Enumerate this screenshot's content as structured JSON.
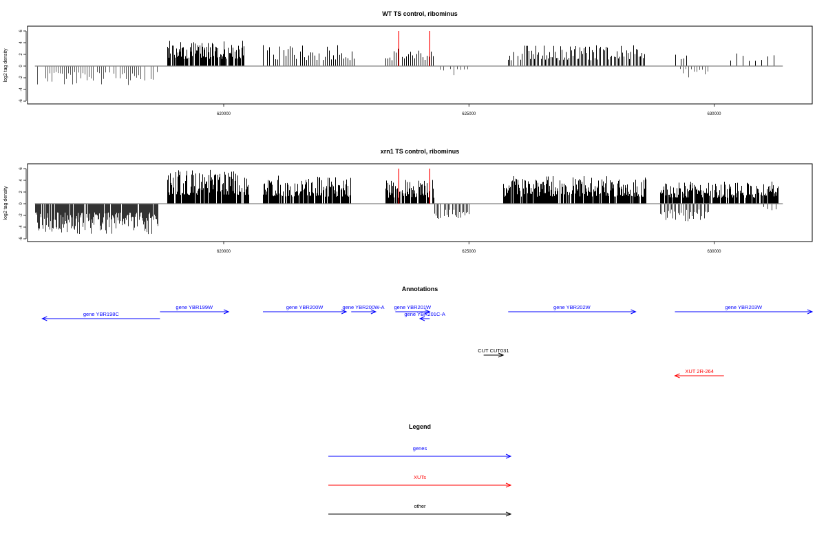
{
  "panels": [
    {
      "title": "WT TS control, ribominus",
      "ylabel": "log2 tag density",
      "ylim": [
        -6,
        6
      ],
      "yticks": [
        -6,
        -4,
        -2,
        0,
        2,
        4,
        6
      ],
      "xlim": [
        616000,
        632000
      ],
      "xticks": [
        620000,
        625000,
        630000
      ],
      "baseline_color": "#808080",
      "red_markers": [
        623570,
        624200
      ],
      "segments": [
        {
          "strand": "-",
          "start": 616150,
          "end": 618650,
          "min": 1.0,
          "max": 3.3,
          "color": "#555555",
          "stride": 3
        },
        {
          "strand": "+",
          "start": 618850,
          "end": 620400,
          "min": 1.2,
          "max": 4.4,
          "color": "#000000",
          "stride": 1
        },
        {
          "strand": "+",
          "start": 620800,
          "end": 622650,
          "min": 1.0,
          "max": 3.6,
          "color": "#000000",
          "stride": 3
        },
        {
          "strand": "+",
          "start": 623300,
          "end": 624300,
          "min": 1.0,
          "max": 3.2,
          "color": "#000000",
          "stride": 3
        },
        {
          "strand": "-",
          "start": 624400,
          "end": 625000,
          "min": 0.5,
          "max": 1.6,
          "color": "#555555",
          "stride": 5
        },
        {
          "strand": "+",
          "start": 625800,
          "end": 628600,
          "min": 1.0,
          "max": 3.6,
          "color": "#000000",
          "stride": 2
        },
        {
          "strand": "+",
          "start": 629200,
          "end": 629500,
          "min": 1.0,
          "max": 3.0,
          "color": "#000000",
          "stride": 4
        },
        {
          "strand": "-",
          "start": 629300,
          "end": 629900,
          "min": 0.5,
          "max": 2.5,
          "color": "#555555",
          "stride": 4
        },
        {
          "strand": "+",
          "start": 630200,
          "end": 631400,
          "min": 0.8,
          "max": 2.2,
          "color": "#000000",
          "stride": 9
        }
      ]
    },
    {
      "title": "xrn1 TS control, ribominus",
      "ylabel": "log2 tag density",
      "ylim": [
        -6,
        6
      ],
      "yticks": [
        -6,
        -4,
        -2,
        0,
        2,
        4,
        6
      ],
      "xlim": [
        616000,
        632000
      ],
      "xticks": [
        620000,
        625000,
        630000
      ],
      "baseline_color": "#808080",
      "red_markers": [
        623570,
        624200
      ],
      "segments": [
        {
          "strand": "-",
          "start": 616150,
          "end": 618650,
          "min": 1.5,
          "max": 5.2,
          "color": "#333333",
          "stride": 1
        },
        {
          "strand": "+",
          "start": 618850,
          "end": 620500,
          "min": 1.5,
          "max": 5.8,
          "color": "#000000",
          "stride": 1
        },
        {
          "strand": "+",
          "start": 620800,
          "end": 622600,
          "min": 1.2,
          "max": 4.8,
          "color": "#000000",
          "stride": 1
        },
        {
          "strand": "+",
          "start": 623300,
          "end": 624300,
          "min": 1.0,
          "max": 4.2,
          "color": "#000000",
          "stride": 1
        },
        {
          "strand": "-",
          "start": 624300,
          "end": 625000,
          "min": 1.0,
          "max": 2.6,
          "color": "#333333",
          "stride": 2
        },
        {
          "strand": "+",
          "start": 625700,
          "end": 628600,
          "min": 1.2,
          "max": 4.8,
          "color": "#000000",
          "stride": 1
        },
        {
          "strand": "+",
          "start": 628900,
          "end": 631300,
          "min": 1.0,
          "max": 3.8,
          "color": "#000000",
          "stride": 1
        },
        {
          "strand": "-",
          "start": 628900,
          "end": 629900,
          "min": 1.0,
          "max": 3.0,
          "color": "#333333",
          "stride": 2
        },
        {
          "strand": "-",
          "start": 631000,
          "end": 631300,
          "min": 0.5,
          "max": 1.5,
          "color": "#333333",
          "stride": 6
        }
      ]
    }
  ],
  "annotations": {
    "title": "Annotations",
    "features": [
      {
        "label": "gene YBR198C",
        "kind": "gene",
        "strand": "-",
        "start": 616300,
        "end": 618700,
        "row": 1,
        "color": "#0000FF"
      },
      {
        "label": "gene YBR199W",
        "kind": "gene",
        "strand": "+",
        "start": 618700,
        "end": 620100,
        "row": 0,
        "color": "#0000FF"
      },
      {
        "label": "gene YBR200W",
        "kind": "gene",
        "strand": "+",
        "start": 620800,
        "end": 622500,
        "row": 0,
        "color": "#0000FF"
      },
      {
        "label": "gene YBR200W-A",
        "kind": "gene",
        "strand": "+",
        "start": 622600,
        "end": 623100,
        "row": 0,
        "color": "#0000FF"
      },
      {
        "label": "gene YBR201W",
        "kind": "gene",
        "strand": "+",
        "start": 623500,
        "end": 624200,
        "row": 0,
        "color": "#0000FF"
      },
      {
        "label": "gene YBR201C-A",
        "kind": "gene",
        "strand": "-",
        "start": 624000,
        "end": 624200,
        "row": 1,
        "color": "#0000FF"
      },
      {
        "label": "gene YBR202W",
        "kind": "gene",
        "strand": "+",
        "start": 625800,
        "end": 628400,
        "row": 0,
        "color": "#0000FF"
      },
      {
        "label": "gene YBR203W",
        "kind": "gene",
        "strand": "+",
        "start": 629200,
        "end": 632000,
        "row": 0,
        "color": "#0000FF"
      },
      {
        "label": "CUT CUT031",
        "kind": "other",
        "strand": "+",
        "start": 625300,
        "end": 625700,
        "row": 2,
        "color": "#000000"
      },
      {
        "label": "XUT 2R-264",
        "kind": "XUT",
        "strand": "-",
        "start": 629200,
        "end": 630200,
        "row": 3,
        "color": "#FF0000"
      }
    ]
  },
  "legend": {
    "title": "Legend",
    "items": [
      {
        "label": "genes",
        "color": "#0000FF"
      },
      {
        "label": "XUTs",
        "color": "#FF0000"
      },
      {
        "label": "other",
        "color": "#000000"
      }
    ]
  },
  "chart_data": [
    {
      "type": "bar",
      "title": "WT TS control, ribominus",
      "xlabel": "",
      "ylabel": "log2 tag density",
      "xlim": [
        616000,
        632000
      ],
      "ylim": [
        -6,
        6
      ],
      "grid": false,
      "x_ticks": [
        620000,
        625000,
        630000
      ],
      "y_ticks": [
        -6,
        -4,
        -2,
        0,
        2,
        4,
        6
      ]
    },
    {
      "type": "bar",
      "title": "xrn1 TS control, ribominus",
      "xlabel": "",
      "ylabel": "log2 tag density",
      "xlim": [
        616000,
        632000
      ],
      "ylim": [
        -6,
        6
      ],
      "grid": false,
      "x_ticks": [
        620000,
        625000,
        630000
      ],
      "y_ticks": [
        -6,
        -4,
        -2,
        0,
        2,
        4,
        6
      ]
    }
  ]
}
